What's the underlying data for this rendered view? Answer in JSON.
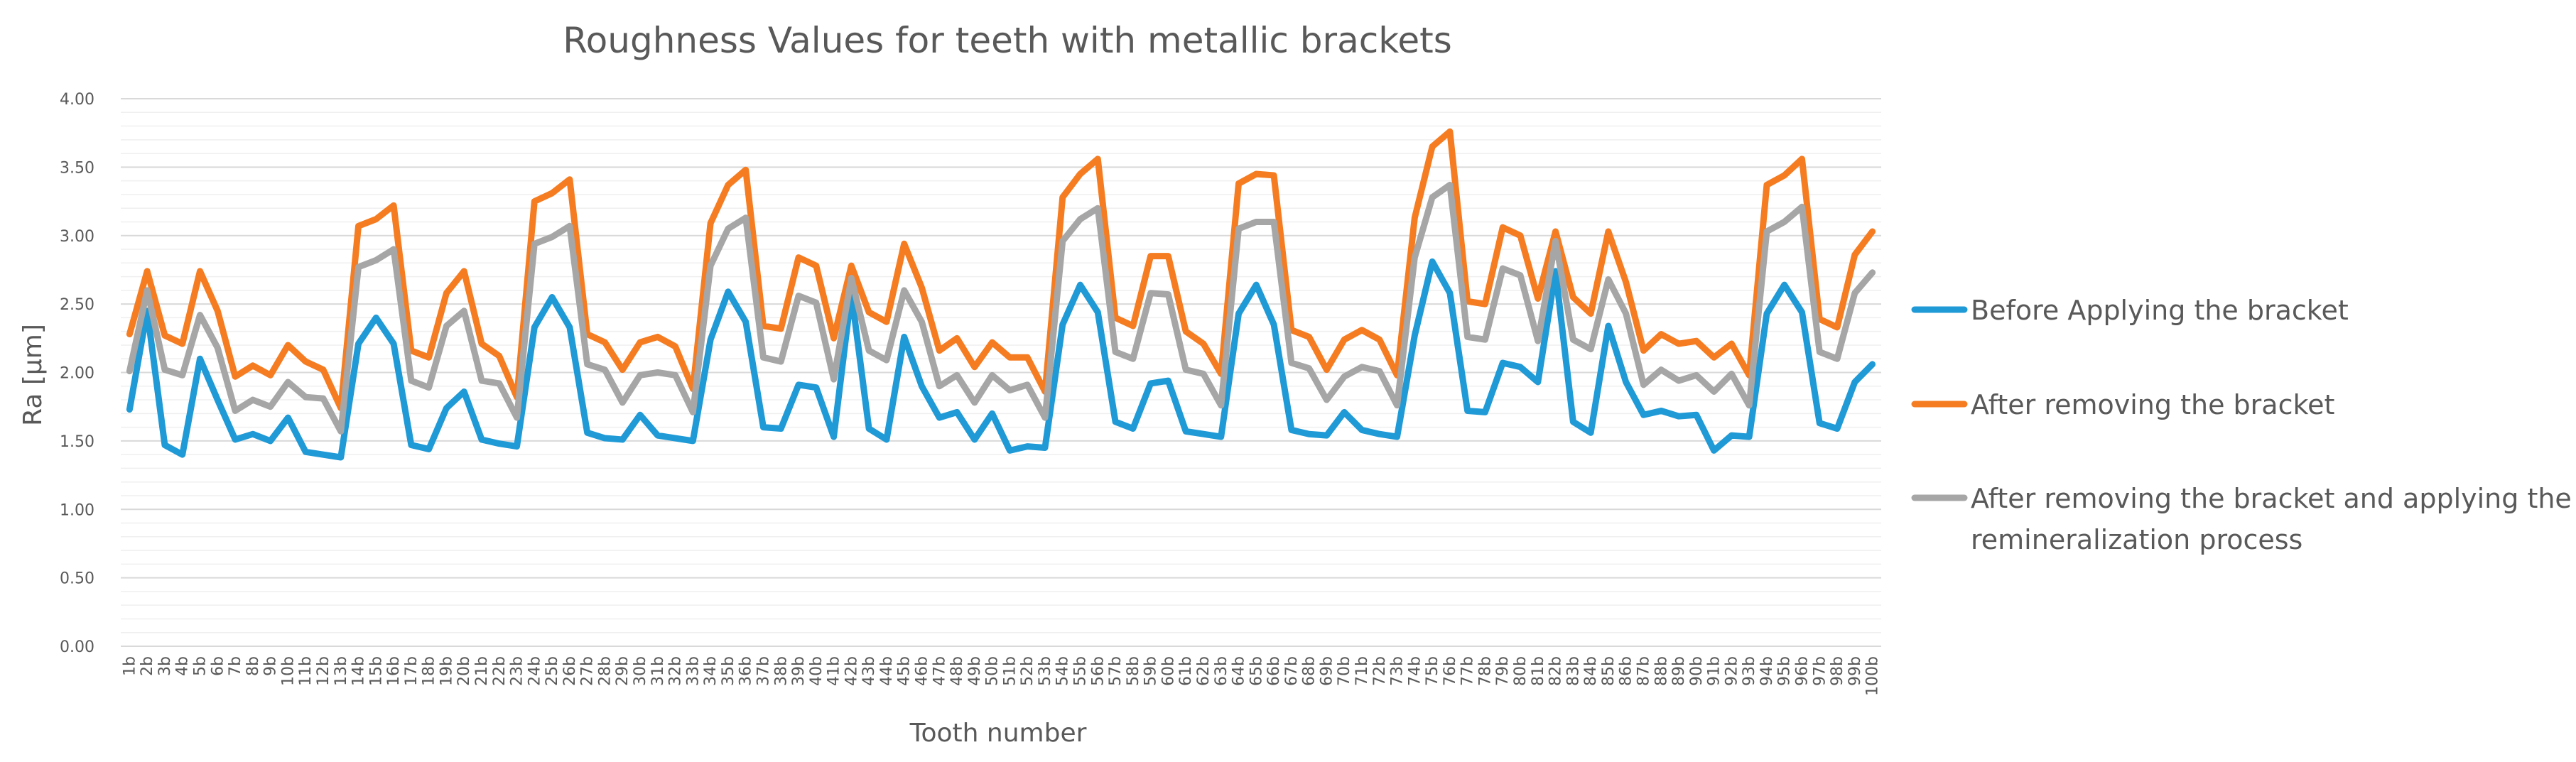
{
  "colors": {
    "before": "#1f9ad6",
    "after": "#f57c21",
    "remin": "#a6a6a6",
    "text": "#595959"
  },
  "chart_data": {
    "type": "line",
    "title": "Roughness Values for teeth with metallic brackets",
    "xlabel": "Tooth number",
    "ylabel": "Ra [µm]",
    "ylim": [
      0,
      4
    ],
    "ytick_labels": [
      "0.00",
      "0.50",
      "1.00",
      "1.50",
      "2.00",
      "2.50",
      "3.00",
      "3.50",
      "4.00"
    ],
    "grid": true,
    "legend_position": "right",
    "categories": [
      "1b",
      "2b",
      "3b",
      "4b",
      "5b",
      "6b",
      "7b",
      "8b",
      "9b",
      "10b",
      "11b",
      "12b",
      "13b",
      "14b",
      "15b",
      "16b",
      "17b",
      "18b",
      "19b",
      "20b",
      "21b",
      "22b",
      "23b",
      "24b",
      "25b",
      "26b",
      "27b",
      "28b",
      "29b",
      "30b",
      "31b",
      "32b",
      "33b",
      "34b",
      "35b",
      "36b",
      "37b",
      "38b",
      "39b",
      "40b",
      "41b",
      "42b",
      "43b",
      "44b",
      "45b",
      "46b",
      "47b",
      "48b",
      "49b",
      "50b",
      "51b",
      "52b",
      "53b",
      "54b",
      "55b",
      "56b",
      "57b",
      "58b",
      "59b",
      "60b",
      "61b",
      "62b",
      "63b",
      "64b",
      "65b",
      "66b",
      "67b",
      "68b",
      "69b",
      "70b",
      "71b",
      "72b",
      "73b",
      "74b",
      "75b",
      "76b",
      "77b",
      "78b",
      "79b",
      "80b",
      "81b",
      "82b",
      "83b",
      "84b",
      "85b",
      "86b",
      "87b",
      "88b",
      "89b",
      "90b",
      "91b",
      "92b",
      "93b",
      "94b",
      "95b",
      "96b",
      "97b",
      "98b",
      "99b",
      "100b"
    ],
    "series": [
      {
        "name": "Before Applying the bracket",
        "color": "#1f9ad6",
        "values": [
          1.73,
          2.45,
          1.47,
          1.4,
          2.1,
          1.8,
          1.51,
          1.55,
          1.5,
          1.67,
          1.42,
          1.4,
          1.38,
          2.21,
          2.4,
          2.21,
          1.47,
          1.44,
          1.74,
          1.86,
          1.51,
          1.48,
          1.46,
          2.33,
          2.55,
          2.33,
          1.56,
          1.52,
          1.51,
          1.69,
          1.54,
          1.52,
          1.5,
          2.24,
          2.59,
          2.37,
          1.6,
          1.59,
          1.91,
          1.89,
          1.53,
          2.58,
          1.59,
          1.51,
          2.26,
          1.9,
          1.67,
          1.71,
          1.51,
          1.7,
          1.43,
          1.46,
          1.45,
          2.35,
          2.64,
          2.44,
          1.64,
          1.59,
          1.92,
          1.94,
          1.57,
          1.55,
          1.53,
          2.43,
          2.64,
          2.35,
          1.58,
          1.55,
          1.54,
          1.71,
          1.58,
          1.55,
          1.53,
          2.27,
          2.81,
          2.58,
          1.72,
          1.71,
          2.07,
          2.04,
          1.93,
          2.74,
          1.64,
          1.56,
          2.34,
          1.93,
          1.69,
          1.72,
          1.68,
          1.69,
          1.43,
          1.54,
          1.53,
          2.43,
          2.64,
          2.44,
          1.63,
          1.59,
          1.93,
          2.06
        ]
      },
      {
        "name": "After removing the bracket",
        "color": "#f57c21",
        "values": [
          2.28,
          2.74,
          2.27,
          2.21,
          2.74,
          2.45,
          1.97,
          2.05,
          1.98,
          2.2,
          2.08,
          2.02,
          1.74,
          3.07,
          3.12,
          3.22,
          2.16,
          2.11,
          2.58,
          2.74,
          2.21,
          2.12,
          1.82,
          3.25,
          3.31,
          3.41,
          2.28,
          2.22,
          2.02,
          2.22,
          2.26,
          2.19,
          1.88,
          3.09,
          3.37,
          3.48,
          2.34,
          2.32,
          2.84,
          2.78,
          2.25,
          2.78,
          2.44,
          2.37,
          2.94,
          2.62,
          2.16,
          2.25,
          2.04,
          2.22,
          2.11,
          2.11,
          1.86,
          3.28,
          3.45,
          3.56,
          2.4,
          2.34,
          2.85,
          2.85,
          2.3,
          2.21,
          1.99,
          3.38,
          3.45,
          3.44,
          2.31,
          2.26,
          2.02,
          2.24,
          2.31,
          2.24,
          1.98,
          3.13,
          3.65,
          3.76,
          2.52,
          2.5,
          3.06,
          3.0,
          2.54,
          3.03,
          2.55,
          2.43,
          3.03,
          2.66,
          2.16,
          2.28,
          2.21,
          2.23,
          2.11,
          2.21,
          1.98,
          3.37,
          3.44,
          3.56,
          2.39,
          2.33,
          2.86,
          3.03
        ]
      },
      {
        "name": "After removing the bracket and applying the remineralization process",
        "color": "#a6a6a6",
        "values": [
          2.01,
          2.6,
          2.02,
          1.98,
          2.42,
          2.18,
          1.72,
          1.8,
          1.75,
          1.93,
          1.82,
          1.81,
          1.57,
          2.77,
          2.82,
          2.9,
          1.94,
          1.89,
          2.34,
          2.45,
          1.94,
          1.92,
          1.67,
          2.94,
          2.99,
          3.07,
          2.06,
          2.02,
          1.78,
          1.98,
          2.0,
          1.98,
          1.71,
          2.78,
          3.05,
          3.13,
          2.11,
          2.08,
          2.56,
          2.51,
          1.95,
          2.69,
          2.16,
          2.09,
          2.6,
          2.37,
          1.9,
          1.98,
          1.78,
          1.98,
          1.87,
          1.91,
          1.67,
          2.96,
          3.12,
          3.2,
          2.15,
          2.1,
          2.58,
          2.57,
          2.02,
          1.99,
          1.76,
          3.05,
          3.1,
          3.1,
          2.07,
          2.03,
          1.8,
          1.97,
          2.04,
          2.01,
          1.76,
          2.84,
          3.28,
          3.37,
          2.26,
          2.24,
          2.76,
          2.71,
          2.23,
          2.96,
          2.24,
          2.17,
          2.68,
          2.43,
          1.91,
          2.02,
          1.94,
          1.98,
          1.86,
          1.99,
          1.76,
          3.03,
          3.1,
          3.21,
          2.15,
          2.1,
          2.58,
          2.73
        ]
      }
    ]
  },
  "legend": {
    "items": [
      {
        "lines": [
          "Before Applying the bracket"
        ]
      },
      {
        "lines": [
          "After removing the bracket"
        ]
      },
      {
        "lines": [
          "After removing the bracket and applying the",
          "remineralization process"
        ]
      }
    ]
  }
}
